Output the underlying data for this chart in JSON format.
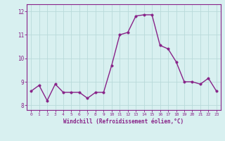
{
  "x": [
    0,
    1,
    2,
    3,
    4,
    5,
    6,
    7,
    8,
    9,
    10,
    11,
    12,
    13,
    14,
    15,
    16,
    17,
    18,
    19,
    20,
    21,
    22,
    23
  ],
  "y": [
    8.6,
    8.85,
    8.2,
    8.9,
    8.55,
    8.55,
    8.55,
    8.3,
    8.55,
    8.55,
    9.7,
    11.0,
    11.1,
    11.8,
    11.85,
    11.85,
    10.55,
    10.4,
    9.85,
    9.0,
    9.0,
    8.9,
    9.15,
    8.6
  ],
  "line_color": "#882288",
  "marker_color": "#882288",
  "bg_color": "#d8f0f0",
  "grid_color": "#b8dada",
  "xlabel": "Windchill (Refroidissement éolien,°C)",
  "xlabel_color": "#882288",
  "tick_color": "#882288",
  "spine_color": "#882288",
  "ylim": [
    7.8,
    12.3
  ],
  "xlim": [
    -0.5,
    23.5
  ],
  "yticks": [
    8,
    9,
    10,
    11,
    12
  ],
  "xticks": [
    0,
    1,
    2,
    3,
    4,
    5,
    6,
    7,
    8,
    9,
    10,
    11,
    12,
    13,
    14,
    15,
    16,
    17,
    18,
    19,
    20,
    21,
    22,
    23
  ],
  "marker_size": 2.5,
  "line_width": 1.0
}
